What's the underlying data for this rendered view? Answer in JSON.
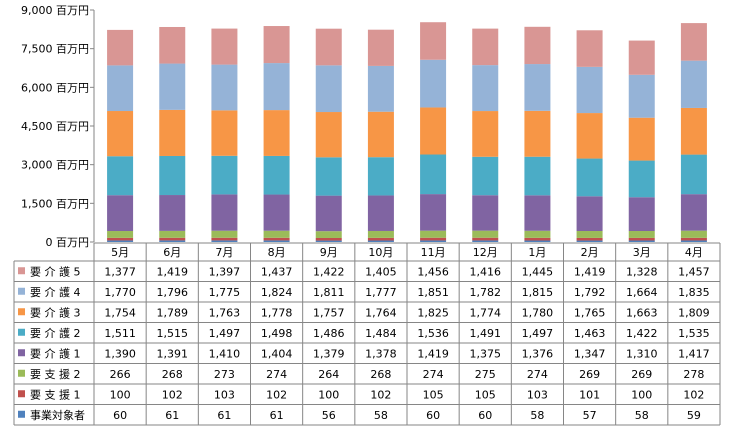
{
  "chart_data": {
    "type": "bar",
    "stacked": true,
    "categories": [
      "5月",
      "6月",
      "7月",
      "8月",
      "9月",
      "10月",
      "11月",
      "12月",
      "1月",
      "2月",
      "3月",
      "4月"
    ],
    "y_unit": "百万円",
    "y_tick_labels": [
      "0 百万円",
      "1,500 百万円",
      "3,000 百万円",
      "4,500 百万円",
      "6,000 百万円",
      "7,500 百万円",
      "9,000 百万円"
    ],
    "y_ticks": [
      0,
      1500,
      3000,
      4500,
      6000,
      7500,
      9000
    ],
    "ylim": [
      0,
      9000
    ],
    "grid": false,
    "legend": "table-left",
    "series": [
      {
        "name": "事業対象者",
        "color": "#4f81bd",
        "values": [
          60,
          61,
          61,
          61,
          56,
          58,
          60,
          60,
          58,
          57,
          58,
          59
        ],
        "labels": [
          "60",
          "61",
          "61",
          "61",
          "56",
          "58",
          "60",
          "60",
          "58",
          "57",
          "58",
          "59"
        ]
      },
      {
        "name": "要 支 援 1",
        "color": "#c0504d",
        "values": [
          100,
          102,
          103,
          102,
          100,
          102,
          105,
          105,
          103,
          101,
          100,
          102
        ],
        "labels": [
          "100",
          "102",
          "103",
          "102",
          "100",
          "102",
          "105",
          "105",
          "103",
          "101",
          "100",
          "102"
        ]
      },
      {
        "name": "要 支 援 2",
        "color": "#9bbb59",
        "values": [
          266,
          268,
          273,
          274,
          264,
          268,
          274,
          275,
          274,
          269,
          269,
          278
        ],
        "labels": [
          "266",
          "268",
          "273",
          "274",
          "264",
          "268",
          "274",
          "275",
          "274",
          "269",
          "269",
          "278"
        ]
      },
      {
        "name": "要 介 護 1",
        "color": "#8064a2",
        "values": [
          1390,
          1391,
          1410,
          1404,
          1379,
          1378,
          1419,
          1375,
          1376,
          1347,
          1310,
          1417
        ],
        "labels": [
          "1,390",
          "1,391",
          "1,410",
          "1,404",
          "1,379",
          "1,378",
          "1,419",
          "1,375",
          "1,376",
          "1,347",
          "1,310",
          "1,417"
        ]
      },
      {
        "name": "要 介 護 2",
        "color": "#4bacc6",
        "values": [
          1511,
          1515,
          1497,
          1498,
          1486,
          1484,
          1536,
          1491,
          1497,
          1463,
          1422,
          1535
        ],
        "labels": [
          "1,511",
          "1,515",
          "1,497",
          "1,498",
          "1,486",
          "1,484",
          "1,536",
          "1,491",
          "1,497",
          "1,463",
          "1,422",
          "1,535"
        ]
      },
      {
        "name": "要 介 護 3",
        "color": "#f79646",
        "values": [
          1754,
          1789,
          1763,
          1778,
          1757,
          1764,
          1825,
          1774,
          1780,
          1765,
          1663,
          1809
        ],
        "labels": [
          "1,754",
          "1,789",
          "1,763",
          "1,778",
          "1,757",
          "1,764",
          "1,825",
          "1,774",
          "1,780",
          "1,765",
          "1,663",
          "1,809"
        ]
      },
      {
        "name": "要 介 護 4",
        "color": "#95b3d7",
        "values": [
          1770,
          1796,
          1775,
          1824,
          1811,
          1777,
          1851,
          1782,
          1815,
          1792,
          1664,
          1835
        ],
        "labels": [
          "1,770",
          "1,796",
          "1,775",
          "1,824",
          "1,811",
          "1,777",
          "1,851",
          "1,782",
          "1,815",
          "1,792",
          "1,664",
          "1,835"
        ]
      },
      {
        "name": "要 介 護 5",
        "color": "#d99694",
        "values": [
          1377,
          1419,
          1397,
          1437,
          1422,
          1405,
          1456,
          1416,
          1445,
          1419,
          1328,
          1457
        ],
        "labels": [
          "1,377",
          "1,419",
          "1,397",
          "1,437",
          "1,422",
          "1,405",
          "1,456",
          "1,416",
          "1,445",
          "1,419",
          "1,328",
          "1,457"
        ]
      }
    ],
    "table_row_order": [
      "要 介 護 5",
      "要 介 護 4",
      "要 介 護 3",
      "要 介 護 2",
      "要 介 護 1",
      "要 支 援 2",
      "要 支 援 1",
      "事業対象者"
    ]
  }
}
